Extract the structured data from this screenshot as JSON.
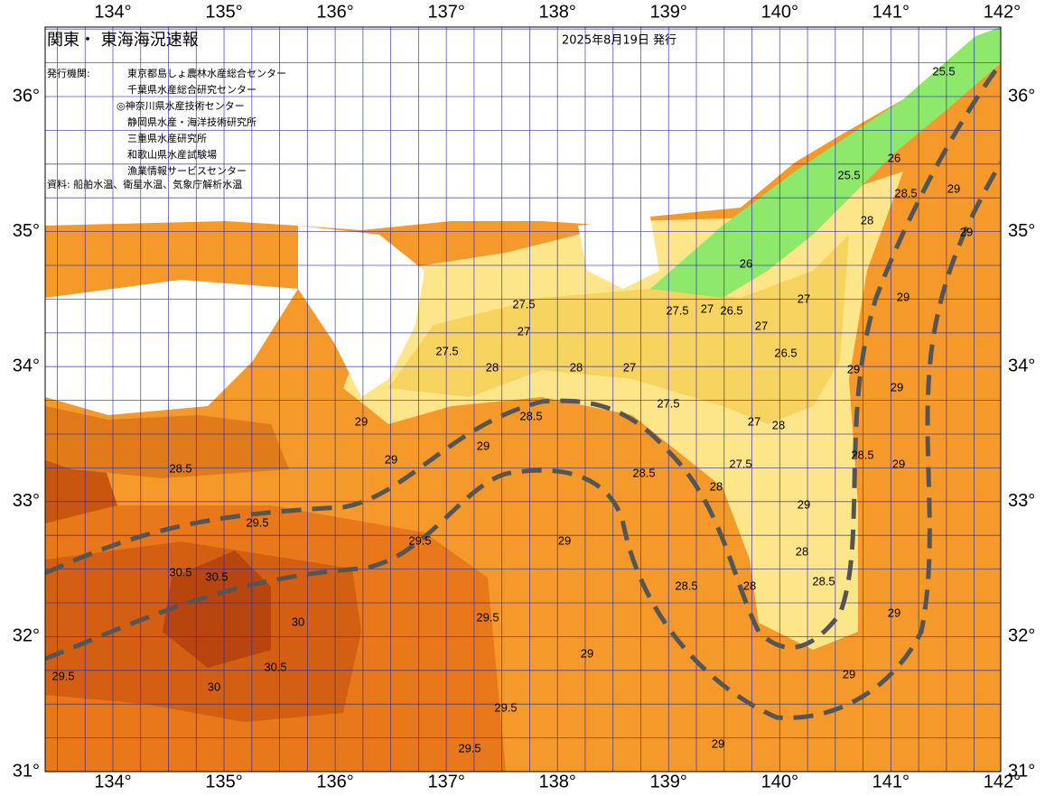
{
  "header": {
    "title": "関東・ 東海海況速報",
    "date": "2025年8月19日 発行"
  },
  "issuers": {
    "label": "発行機関:",
    "items": [
      "東京都島しょ農林水産総合センター",
      "千葉県水産総合研究センター",
      "◎神奈川県水産技術センター",
      "静岡県水産・海洋技術研究所",
      "三重県水産研究所",
      "和歌山県水産試験場",
      "漁業情報サービスセンター"
    ]
  },
  "source": "資料: 船舶水温、衛星水温、気象庁解析水温",
  "lon_ticks": [
    {
      "value": 134,
      "label": "134°"
    },
    {
      "value": 135,
      "label": "135°"
    },
    {
      "value": 136,
      "label": "136°"
    },
    {
      "value": 137,
      "label": "137°"
    },
    {
      "value": 138,
      "label": "138°"
    },
    {
      "value": 139,
      "label": "139°"
    },
    {
      "value": 140,
      "label": "140°"
    },
    {
      "value": 141,
      "label": "141°"
    },
    {
      "value": 142,
      "label": "142°"
    }
  ],
  "lat_ticks": [
    {
      "value": 36,
      "label": "36°"
    },
    {
      "value": 35,
      "label": "35°"
    },
    {
      "value": 34,
      "label": "34°"
    },
    {
      "value": 33,
      "label": "33°"
    },
    {
      "value": 32,
      "label": "32°"
    },
    {
      "value": 31,
      "label": "31°"
    }
  ],
  "contour_labels": [
    25.5,
    26,
    25.5,
    28.5,
    28,
    26,
    27,
    27,
    26.5,
    27,
    27.5,
    27.5,
    27,
    27.5,
    28,
    27,
    28,
    26.5,
    27.5,
    28.5,
    27,
    28,
    27.5,
    28.5,
    28,
    29,
    29,
    29,
    28.5,
    29.5,
    29.5,
    29,
    29,
    28,
    28.5,
    28.5,
    28,
    29.5,
    29,
    29,
    29,
    29,
    29,
    29,
    29,
    30.5,
    30.5,
    30,
    30.5,
    30,
    29.5,
    29.5,
    29.5,
    29,
    29,
    29,
    28.5
  ]
}
